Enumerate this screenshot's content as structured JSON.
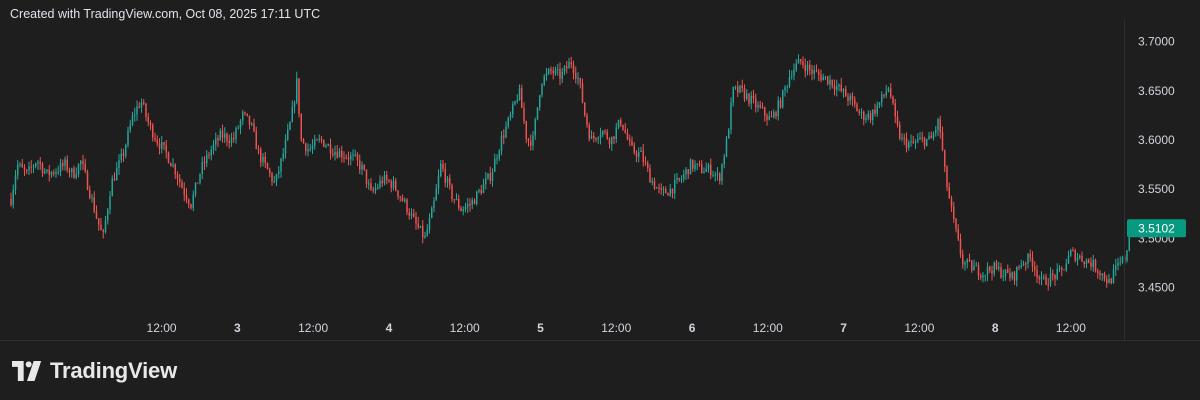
{
  "header": {
    "caption": "Created with TradingView.com, Oct 08, 2025 17:11 UTC"
  },
  "brand": {
    "name": "TradingView",
    "logo_icon": "tradingview-logo-icon"
  },
  "colors": {
    "background": "#1e1e1e",
    "up": "#26a69a",
    "down": "#ef5350",
    "price_badge": "#089981",
    "axis_text": "#d1d4dc",
    "border": "#2f2f2f"
  },
  "chart_data": {
    "type": "candlestick",
    "y_axis": {
      "ticks": [
        "3.4500",
        "3.5000",
        "3.5500",
        "3.6000",
        "3.6500",
        "3.7000"
      ],
      "tick_values": [
        3.45,
        3.5,
        3.55,
        3.6,
        3.65,
        3.7
      ],
      "range": [
        3.425,
        3.715
      ]
    },
    "x_axis": {
      "range_days": [
        1.5,
        8.85
      ],
      "ticks": [
        {
          "label": "12:00",
          "day": 2.5,
          "bold": false
        },
        {
          "label": "3",
          "day": 3.0,
          "bold": true
        },
        {
          "label": "12:00",
          "day": 3.5,
          "bold": false
        },
        {
          "label": "4",
          "day": 4.0,
          "bold": true
        },
        {
          "label": "12:00",
          "day": 4.5,
          "bold": false
        },
        {
          "label": "5",
          "day": 5.0,
          "bold": true
        },
        {
          "label": "12:00",
          "day": 5.5,
          "bold": false
        },
        {
          "label": "6",
          "day": 6.0,
          "bold": true
        },
        {
          "label": "12:00",
          "day": 6.5,
          "bold": false
        },
        {
          "label": "7",
          "day": 7.0,
          "bold": true
        },
        {
          "label": "12:00",
          "day": 7.5,
          "bold": false
        },
        {
          "label": "8",
          "day": 8.0,
          "bold": true
        },
        {
          "label": "12:00",
          "day": 8.5,
          "bold": false
        }
      ]
    },
    "last_price": {
      "label": "3.5102",
      "value": 3.5102
    },
    "price_path": [
      [
        0,
        3.54
      ],
      [
        6,
        3.575
      ],
      [
        16,
        3.565
      ],
      [
        26,
        3.58
      ],
      [
        36,
        3.565
      ],
      [
        46,
        3.57
      ],
      [
        54,
        3.575
      ],
      [
        62,
        3.565
      ],
      [
        70,
        3.578
      ],
      [
        78,
        3.55
      ],
      [
        86,
        3.52
      ],
      [
        92,
        3.5
      ],
      [
        100,
        3.555
      ],
      [
        112,
        3.585
      ],
      [
        122,
        3.625
      ],
      [
        130,
        3.64
      ],
      [
        138,
        3.615
      ],
      [
        146,
        3.6
      ],
      [
        156,
        3.585
      ],
      [
        164,
        3.57
      ],
      [
        172,
        3.55
      ],
      [
        180,
        3.535
      ],
      [
        190,
        3.57
      ],
      [
        200,
        3.59
      ],
      [
        210,
        3.605
      ],
      [
        222,
        3.6
      ],
      [
        232,
        3.625
      ],
      [
        240,
        3.615
      ],
      [
        248,
        3.585
      ],
      [
        256,
        3.57
      ],
      [
        264,
        3.555
      ],
      [
        272,
        3.585
      ],
      [
        280,
        3.62
      ],
      [
        286,
        3.66
      ],
      [
        290,
        3.6
      ],
      [
        298,
        3.59
      ],
      [
        310,
        3.6
      ],
      [
        322,
        3.59
      ],
      [
        334,
        3.585
      ],
      [
        344,
        3.58
      ],
      [
        352,
        3.57
      ],
      [
        360,
        3.545
      ],
      [
        372,
        3.56
      ],
      [
        382,
        3.555
      ],
      [
        394,
        3.535
      ],
      [
        404,
        3.515
      ],
      [
        414,
        3.5
      ],
      [
        422,
        3.53
      ],
      [
        430,
        3.575
      ],
      [
        440,
        3.545
      ],
      [
        450,
        3.53
      ],
      [
        460,
        3.535
      ],
      [
        470,
        3.55
      ],
      [
        480,
        3.565
      ],
      [
        490,
        3.6
      ],
      [
        500,
        3.625
      ],
      [
        508,
        3.65
      ],
      [
        516,
        3.6
      ],
      [
        522,
        3.6
      ],
      [
        530,
        3.66
      ],
      [
        540,
        3.67
      ],
      [
        550,
        3.665
      ],
      [
        560,
        3.68
      ],
      [
        568,
        3.66
      ],
      [
        574,
        3.625
      ],
      [
        580,
        3.6
      ],
      [
        590,
        3.61
      ],
      [
        600,
        3.6
      ],
      [
        610,
        3.62
      ],
      [
        620,
        3.59
      ],
      [
        630,
        3.585
      ],
      [
        640,
        3.56
      ],
      [
        650,
        3.545
      ],
      [
        660,
        3.55
      ],
      [
        670,
        3.56
      ],
      [
        680,
        3.575
      ],
      [
        690,
        3.57
      ],
      [
        700,
        3.57
      ],
      [
        708,
        3.56
      ],
      [
        716,
        3.6
      ],
      [
        722,
        3.65
      ],
      [
        730,
        3.65
      ],
      [
        740,
        3.64
      ],
      [
        750,
        3.63
      ],
      [
        760,
        3.62
      ],
      [
        770,
        3.64
      ],
      [
        780,
        3.67
      ],
      [
        790,
        3.68
      ],
      [
        800,
        3.67
      ],
      [
        810,
        3.665
      ],
      [
        820,
        3.66
      ],
      [
        830,
        3.65
      ],
      [
        840,
        3.64
      ],
      [
        850,
        3.625
      ],
      [
        860,
        3.625
      ],
      [
        870,
        3.64
      ],
      [
        878,
        3.655
      ],
      [
        884,
        3.62
      ],
      [
        890,
        3.6
      ],
      [
        900,
        3.595
      ],
      [
        910,
        3.6
      ],
      [
        920,
        3.6
      ],
      [
        928,
        3.62
      ],
      [
        934,
        3.565
      ],
      [
        940,
        3.53
      ],
      [
        946,
        3.5
      ],
      [
        952,
        3.475
      ],
      [
        962,
        3.47
      ],
      [
        972,
        3.465
      ],
      [
        982,
        3.47
      ],
      [
        992,
        3.465
      ],
      [
        1002,
        3.46
      ],
      [
        1010,
        3.475
      ],
      [
        1020,
        3.48
      ],
      [
        1030,
        3.455
      ],
      [
        1040,
        3.46
      ],
      [
        1050,
        3.465
      ],
      [
        1060,
        3.485
      ],
      [
        1070,
        3.48
      ],
      [
        1080,
        3.475
      ],
      [
        1090,
        3.465
      ],
      [
        1098,
        3.455
      ],
      [
        1106,
        3.47
      ],
      [
        1114,
        3.48
      ],
      [
        1120,
        3.5102
      ]
    ]
  }
}
